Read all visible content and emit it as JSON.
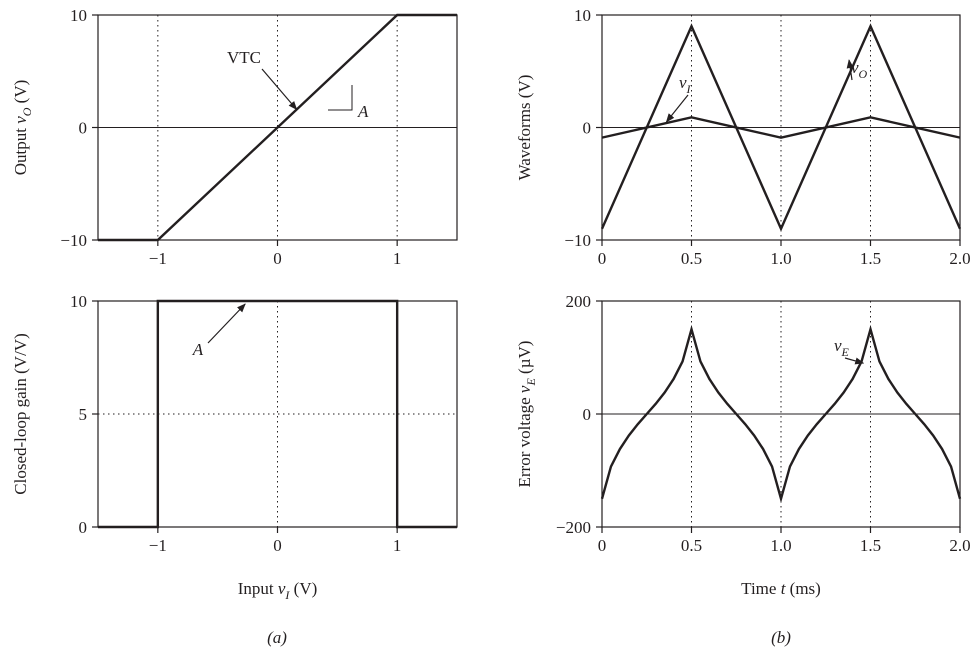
{
  "figure": {
    "panel_labels": [
      "(a)",
      "(b)"
    ]
  },
  "chart_data": [
    {
      "type": "line",
      "panel": "a-top",
      "xlim": [
        -1.5,
        1.5
      ],
      "ylim": [
        -10,
        10
      ],
      "xticks": [
        -1,
        0,
        1
      ],
      "xtick_labels": [
        "−1",
        "0",
        "1"
      ],
      "yticks": [
        -10,
        0,
        10
      ],
      "ytick_labels": [
        "−10",
        "0",
        "10"
      ],
      "ylabel": "Output",
      "ylabel_var": "v",
      "ylabel_sub": "O",
      "ylabel_unit": "(V)",
      "grid": {
        "vertical_dotted_at": [
          -1,
          0,
          1
        ],
        "solid_hline_at": 0
      },
      "series": [
        {
          "x": [
            -1.5,
            -1,
            1,
            1.5
          ],
          "y": [
            -10,
            -10,
            10,
            10
          ]
        }
      ],
      "annotations": [
        {
          "text": "VTC",
          "italic": false,
          "points_to": [
            0.16,
            1.6
          ]
        },
        {
          "text": "A",
          "italic": true
        }
      ]
    },
    {
      "type": "line",
      "panel": "a-bottom",
      "xlim": [
        -1.5,
        1.5
      ],
      "ylim": [
        0,
        10
      ],
      "xticks": [
        -1,
        0,
        1
      ],
      "xtick_labels": [
        "−1",
        "0",
        "1"
      ],
      "yticks": [
        0,
        5,
        10
      ],
      "ytick_labels": [
        "0",
        "5",
        "10"
      ],
      "xlabel": "Input",
      "xlabel_var": "v",
      "xlabel_sub": "I",
      "xlabel_unit": "(V)",
      "ylabel": "Closed-loop gain (V/V)",
      "grid": {
        "vertical_dotted_at": [
          0
        ],
        "dotted_hline_at": 5
      },
      "series": [
        {
          "x": [
            -1.5,
            -1,
            -1,
            1,
            1,
            1.5
          ],
          "y": [
            0,
            0,
            10,
            10,
            0,
            0
          ]
        }
      ],
      "annotations": [
        {
          "text": "A",
          "italic": true,
          "points_to": [
            -0.27,
            10
          ]
        }
      ]
    },
    {
      "type": "line",
      "panel": "b-top",
      "xlim": [
        0,
        2.0
      ],
      "ylim": [
        -10,
        10
      ],
      "xticks": [
        0,
        0.5,
        1.0,
        1.5,
        2.0
      ],
      "xtick_labels": [
        "0",
        "0.5",
        "1.0",
        "1.5",
        "2.0"
      ],
      "yticks": [
        -10,
        0,
        10
      ],
      "ytick_labels": [
        "−10",
        "0",
        "10"
      ],
      "ylabel": "Waveforms (V)",
      "grid": {
        "vertical_dotted_at": [
          0.5,
          1.0,
          1.5
        ],
        "solid_hline_at": 0
      },
      "series": [
        {
          "name_var": "v",
          "name_sub": "O",
          "x": [
            0,
            0.5,
            1.0,
            1.5,
            2.0
          ],
          "y": [
            -9,
            9,
            -9,
            9,
            -9
          ]
        },
        {
          "name_var": "v",
          "name_sub": "I",
          "x": [
            0,
            0.5,
            1.0,
            1.5,
            2.0
          ],
          "y": [
            -0.9,
            0.9,
            -0.9,
            0.9,
            -0.9
          ]
        }
      ],
      "annotations": [
        {
          "text_var": "v",
          "text_sub": "O",
          "points_to": [
            1.38,
            6.0
          ]
        },
        {
          "text_var": "v",
          "text_sub": "I",
          "points_to": [
            0.36,
            0.5
          ]
        }
      ]
    },
    {
      "type": "line",
      "panel": "b-bottom",
      "xlim": [
        0,
        2.0
      ],
      "ylim": [
        -200,
        200
      ],
      "xticks": [
        0,
        0.5,
        1.0,
        1.5,
        2.0
      ],
      "xtick_labels": [
        "0",
        "0.5",
        "1.0",
        "1.5",
        "2.0"
      ],
      "yticks": [
        -200,
        0,
        200
      ],
      "ytick_labels": [
        "−200",
        "0",
        "200"
      ],
      "xlabel": "Time",
      "xlabel_var": "t",
      "xlabel_unit": "(ms)",
      "ylabel": "Error voltage",
      "ylabel_var": "v",
      "ylabel_sub": "E",
      "ylabel_unit": "(µV)",
      "grid": {
        "vertical_dotted_at": [
          0.5,
          1.0,
          1.5
        ],
        "solid_hline_at": 0
      },
      "series": [
        {
          "name_var": "v",
          "name_sub": "E",
          "x": [
            0,
            0.05,
            0.1,
            0.15,
            0.2,
            0.25,
            0.3,
            0.35,
            0.4,
            0.45,
            0.5,
            0.55,
            0.6,
            0.65,
            0.7,
            0.75,
            0.8,
            0.85,
            0.9,
            0.95,
            1.0,
            1.05,
            1.1,
            1.15,
            1.2,
            1.25,
            1.3,
            1.35,
            1.4,
            1.45,
            1.5,
            1.55,
            1.6,
            1.65,
            1.7,
            1.75,
            1.8,
            1.85,
            1.9,
            1.95,
            2.0
          ],
          "y": [
            -150,
            -93,
            -62,
            -38,
            -18,
            0,
            18,
            38,
            62,
            93,
            150,
            93,
            62,
            38,
            18,
            0,
            -18,
            -38,
            -62,
            -93,
            -150,
            -93,
            -62,
            -38,
            -18,
            0,
            18,
            38,
            62,
            93,
            150,
            93,
            62,
            38,
            18,
            0,
            -18,
            -38,
            -62,
            -93,
            -150
          ]
        }
      ],
      "annotations": [
        {
          "text_var": "v",
          "text_sub": "E",
          "points_to": [
            1.46,
            90
          ]
        }
      ]
    }
  ]
}
